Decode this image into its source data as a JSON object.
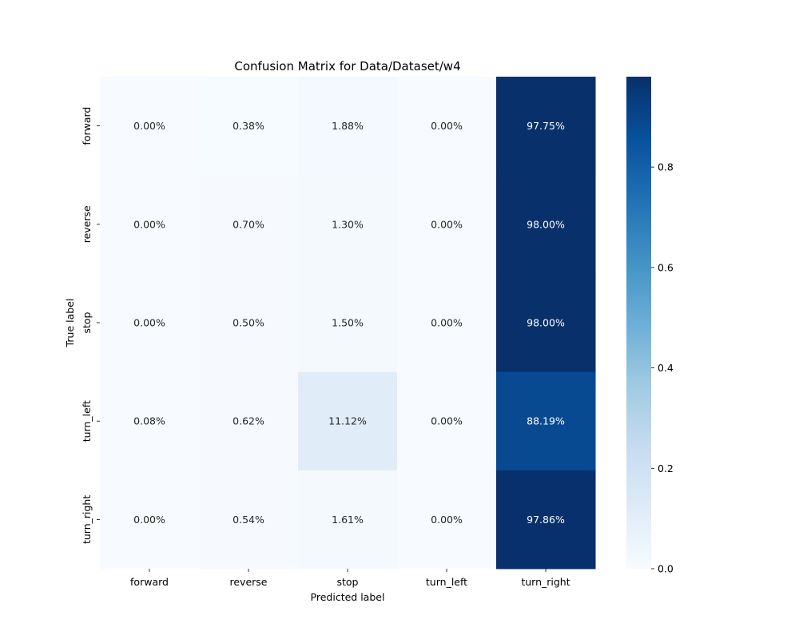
{
  "chart_data": {
    "type": "heatmap",
    "title": "Confusion Matrix for Data/Dataset/w4",
    "xlabel": "Predicted label",
    "ylabel": "True label",
    "x_categories": [
      "forward",
      "reverse",
      "stop",
      "turn_left",
      "turn_right"
    ],
    "y_categories": [
      "forward",
      "reverse",
      "stop",
      "turn_left",
      "turn_right"
    ],
    "values": [
      [
        0.0,
        0.0038,
        0.0188,
        0.0,
        0.9775
      ],
      [
        0.0,
        0.007,
        0.013,
        0.0,
        0.98
      ],
      [
        0.0,
        0.005,
        0.015,
        0.0,
        0.98
      ],
      [
        0.0008,
        0.0062,
        0.1112,
        0.0,
        0.8819
      ],
      [
        0.0,
        0.0054,
        0.0161,
        0.0,
        0.9786
      ]
    ],
    "annotations": [
      [
        "0.00%",
        "0.38%",
        "1.88%",
        "0.00%",
        "97.75%"
      ],
      [
        "0.00%",
        "0.70%",
        "1.30%",
        "0.00%",
        "98.00%"
      ],
      [
        "0.00%",
        "0.50%",
        "1.50%",
        "0.00%",
        "98.00%"
      ],
      [
        "0.08%",
        "0.62%",
        "11.12%",
        "0.00%",
        "88.19%"
      ],
      [
        "0.00%",
        "0.54%",
        "1.61%",
        "0.00%",
        "97.86%"
      ]
    ],
    "colormap": "Blues",
    "colorbar": {
      "range": [
        0.0,
        0.98
      ],
      "ticks": [
        0.0,
        0.2,
        0.4,
        0.6,
        0.8
      ],
      "tick_labels": [
        "0.0",
        "0.2",
        "0.4",
        "0.6",
        "0.8"
      ]
    },
    "grid": false
  }
}
